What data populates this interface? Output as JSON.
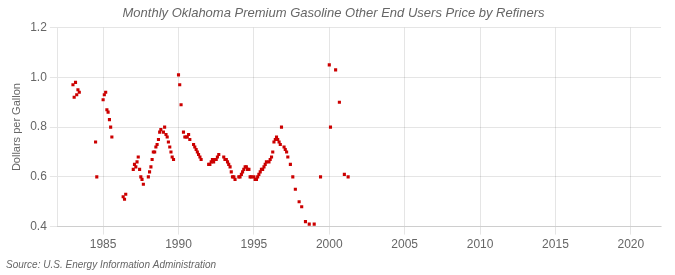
{
  "chart_data": {
    "type": "scatter",
    "title": "Monthly Oklahoma Premium Gasoline Other End Users Price by Refiners",
    "ylabel": "Dollars per Gallon",
    "annotations": [
      "Source: U.S. Energy Information Administration"
    ],
    "color": "#cc0000",
    "marker": "square",
    "grid": true,
    "xlim": [
      1982,
      2022
    ],
    "ylim": [
      0.4,
      1.2
    ],
    "xticks": [
      1985,
      1990,
      1995,
      2000,
      2005,
      2010,
      2015,
      2020
    ],
    "yticks": [
      0.4,
      0.6,
      0.8,
      {
        "value": 1.0,
        "label": "1.0"
      },
      1.2
    ],
    "x": [
      1983.0,
      1983.08,
      1983.17,
      1983.25,
      1983.33,
      1983.42,
      1984.5,
      1984.58,
      1985.0,
      1985.08,
      1985.17,
      1985.25,
      1985.33,
      1985.42,
      1985.5,
      1985.58,
      1986.33,
      1986.42,
      1986.5,
      1987.0,
      1987.08,
      1987.17,
      1987.25,
      1987.33,
      1987.42,
      1987.5,
      1987.58,
      1987.67,
      1988.0,
      1988.08,
      1988.17,
      1988.25,
      1988.33,
      1988.42,
      1988.5,
      1988.58,
      1988.67,
      1988.75,
      1988.83,
      1989.0,
      1989.08,
      1989.17,
      1989.25,
      1989.33,
      1989.42,
      1989.5,
      1989.58,
      1989.67,
      1990.0,
      1990.08,
      1990.17,
      1990.33,
      1990.42,
      1990.5,
      1990.58,
      1990.67,
      1990.75,
      1991.0,
      1991.08,
      1991.17,
      1991.25,
      1991.33,
      1991.42,
      1991.5,
      1992.0,
      1992.08,
      1992.17,
      1992.25,
      1992.33,
      1992.42,
      1992.5,
      1992.58,
      1992.67,
      1993.0,
      1993.08,
      1993.17,
      1993.25,
      1993.33,
      1993.42,
      1993.5,
      1993.58,
      1993.67,
      1993.75,
      1994.0,
      1994.08,
      1994.17,
      1994.25,
      1994.33,
      1994.42,
      1994.5,
      1994.58,
      1994.67,
      1994.75,
      1994.83,
      1995.0,
      1995.08,
      1995.17,
      1995.25,
      1995.33,
      1995.42,
      1995.5,
      1995.58,
      1995.67,
      1995.75,
      1995.83,
      1996.0,
      1996.08,
      1996.17,
      1996.25,
      1996.33,
      1996.42,
      1996.5,
      1996.58,
      1996.67,
      1996.75,
      1996.83,
      1997.0,
      1997.08,
      1997.17,
      1997.25,
      1997.42,
      1997.58,
      1997.75,
      1998.0,
      1998.17,
      1998.42,
      1998.67,
      1999.0,
      1999.42,
      2000.0,
      2000.08,
      2000.42,
      2000.67,
      2001.0,
      2001.25
    ],
    "values": [
      0.97,
      0.92,
      0.98,
      0.93,
      0.95,
      0.94,
      0.74,
      0.6,
      0.91,
      0.93,
      0.94,
      0.87,
      0.86,
      0.83,
      0.8,
      0.76,
      0.52,
      0.51,
      0.53,
      0.63,
      0.65,
      0.64,
      0.66,
      0.68,
      0.63,
      0.6,
      0.59,
      0.57,
      0.6,
      0.62,
      0.64,
      0.67,
      0.7,
      0.7,
      0.72,
      0.73,
      0.75,
      0.78,
      0.79,
      0.78,
      0.8,
      0.77,
      0.76,
      0.74,
      0.72,
      0.7,
      0.68,
      0.67,
      1.01,
      0.97,
      0.89,
      0.78,
      0.76,
      0.76,
      0.76,
      0.77,
      0.75,
      0.73,
      0.72,
      0.71,
      0.7,
      0.69,
      0.68,
      0.67,
      0.65,
      0.65,
      0.66,
      0.67,
      0.66,
      0.67,
      0.67,
      0.68,
      0.69,
      0.68,
      0.67,
      0.67,
      0.66,
      0.65,
      0.64,
      0.62,
      0.6,
      0.6,
      0.59,
      0.6,
      0.6,
      0.61,
      0.62,
      0.63,
      0.64,
      0.64,
      0.63,
      0.63,
      0.6,
      0.6,
      0.6,
      0.59,
      0.59,
      0.6,
      0.61,
      0.62,
      0.63,
      0.63,
      0.64,
      0.65,
      0.66,
      0.66,
      0.67,
      0.68,
      0.7,
      0.74,
      0.75,
      0.76,
      0.75,
      0.74,
      0.73,
      0.8,
      0.72,
      0.71,
      0.7,
      0.68,
      0.65,
      0.6,
      0.55,
      0.5,
      0.48,
      0.42,
      0.41,
      0.41,
      0.6,
      1.05,
      0.8,
      1.03,
      0.9,
      0.61,
      0.6
    ]
  }
}
